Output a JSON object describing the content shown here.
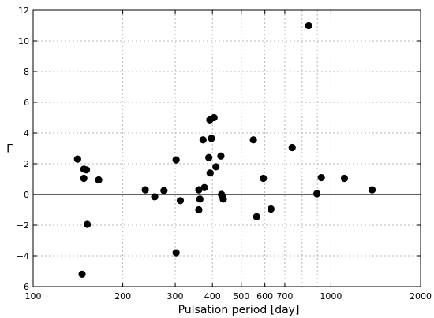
{
  "chart_data": {
    "type": "scatter",
    "xlabel": "Pulsation period  [day]",
    "ylabel": "Γ",
    "xscale": "log",
    "xlim": [
      100,
      2000
    ],
    "ylim": [
      -6,
      12
    ],
    "x_ticks": [
      100,
      200,
      300,
      400,
      500,
      600,
      700,
      1000,
      2000
    ],
    "x_tick_labels": [
      "100",
      "200",
      "300",
      "400",
      "500",
      "600",
      "700",
      "1000",
      "2000"
    ],
    "x_minor_grid": [
      800,
      900
    ],
    "y_ticks": [
      -6,
      -4,
      -2,
      0,
      2,
      4,
      6,
      8,
      10,
      12
    ],
    "y_tick_labels": [
      "−6",
      "−4",
      "−2",
      "0",
      "2",
      "4",
      "6",
      "8",
      "10",
      "12"
    ],
    "grid": true,
    "reference_line": 0,
    "colors": {
      "points": "#000000",
      "grid": "#b8b8b8",
      "axis": "#000000"
    },
    "x": [
      141,
      146,
      148,
      148,
      151,
      152,
      166,
      238,
      256,
      275,
      302,
      302,
      312,
      360,
      360,
      363,
      372,
      376,
      389,
      392,
      393,
      397,
      405,
      411,
      427,
      429,
      431,
      435,
      549,
      563,
      593,
      629,
      741,
      842,
      897,
      928,
      1110,
      1375
    ],
    "y": [
      2.3,
      -5.2,
      1.65,
      1.05,
      1.6,
      -1.95,
      0.95,
      0.3,
      -0.15,
      0.25,
      -3.8,
      2.25,
      -0.4,
      0.3,
      -1.0,
      -0.3,
      3.55,
      0.45,
      2.4,
      4.85,
      1.4,
      3.65,
      5.0,
      1.8,
      2.5,
      0.0,
      -0.1,
      -0.3,
      3.55,
      -1.45,
      1.05,
      -0.95,
      3.05,
      11.0,
      0.05,
      1.1,
      1.05,
      0.3
    ]
  }
}
